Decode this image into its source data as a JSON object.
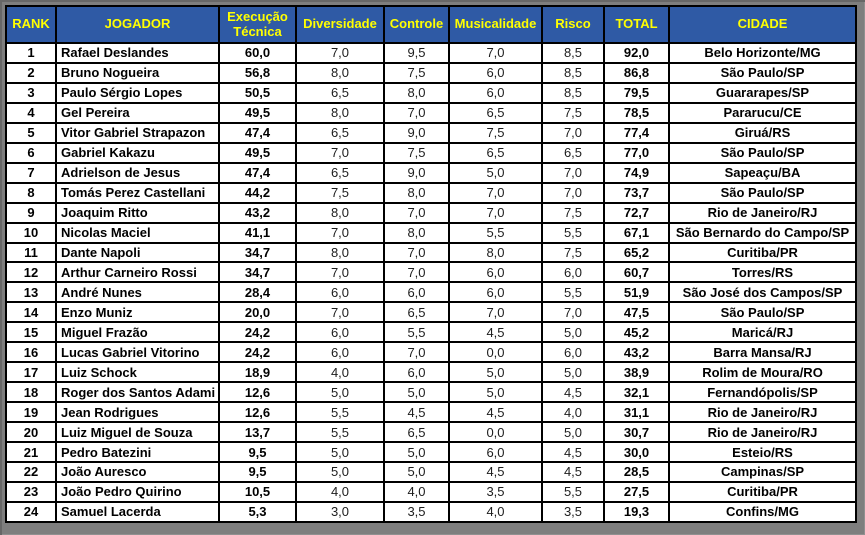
{
  "colors": {
    "header_bg": "#2F5AA5",
    "header_text": "#FFFF00",
    "cell_bg": "#FFFFFF",
    "grid_border": "#000000",
    "frame_bg": "#7E7E7E",
    "strong_text": "#000000",
    "metric_text": "#1C1C1C"
  },
  "table": {
    "columns": [
      {
        "key": "rank",
        "label": "RANK"
      },
      {
        "key": "jogador",
        "label": "JOGADOR"
      },
      {
        "key": "execucao",
        "label": "Execução Técnica"
      },
      {
        "key": "diversidade",
        "label": "Diversidade"
      },
      {
        "key": "controle",
        "label": "Controle"
      },
      {
        "key": "musicalidade",
        "label": "Musicalidade"
      },
      {
        "key": "risco",
        "label": "Risco"
      },
      {
        "key": "total",
        "label": "TOTAL"
      },
      {
        "key": "cidade",
        "label": "CIDADE"
      }
    ],
    "rows": [
      {
        "rank": "1",
        "jogador": "Rafael Deslandes",
        "execucao": "60,0",
        "diversidade": "7,0",
        "controle": "9,5",
        "musicalidade": "7,0",
        "risco": "8,5",
        "total": "92,0",
        "cidade": "Belo Horizonte/MG"
      },
      {
        "rank": "2",
        "jogador": "Bruno Nogueira",
        "execucao": "56,8",
        "diversidade": "8,0",
        "controle": "7,5",
        "musicalidade": "6,0",
        "risco": "8,5",
        "total": "86,8",
        "cidade": "São Paulo/SP"
      },
      {
        "rank": "3",
        "jogador": "Paulo Sérgio Lopes",
        "execucao": "50,5",
        "diversidade": "6,5",
        "controle": "8,0",
        "musicalidade": "6,0",
        "risco": "8,5",
        "total": "79,5",
        "cidade": "Guararapes/SP"
      },
      {
        "rank": "4",
        "jogador": "Gel Pereira",
        "execucao": "49,5",
        "diversidade": "8,0",
        "controle": "7,0",
        "musicalidade": "6,5",
        "risco": "7,5",
        "total": "78,5",
        "cidade": "Pararucu/CE"
      },
      {
        "rank": "5",
        "jogador": "Vitor Gabriel Strapazon",
        "execucao": "47,4",
        "diversidade": "6,5",
        "controle": "9,0",
        "musicalidade": "7,5",
        "risco": "7,0",
        "total": "77,4",
        "cidade": "Giruá/RS"
      },
      {
        "rank": "6",
        "jogador": "Gabriel Kakazu",
        "execucao": "49,5",
        "diversidade": "7,0",
        "controle": "7,5",
        "musicalidade": "6,5",
        "risco": "6,5",
        "total": "77,0",
        "cidade": "São Paulo/SP"
      },
      {
        "rank": "7",
        "jogador": "Adrielson de Jesus",
        "execucao": "47,4",
        "diversidade": "6,5",
        "controle": "9,0",
        "musicalidade": "5,0",
        "risco": "7,0",
        "total": "74,9",
        "cidade": "Sapeaçu/BA"
      },
      {
        "rank": "8",
        "jogador": "Tomás Perez Castellani",
        "execucao": "44,2",
        "diversidade": "7,5",
        "controle": "8,0",
        "musicalidade": "7,0",
        "risco": "7,0",
        "total": "73,7",
        "cidade": "São Paulo/SP"
      },
      {
        "rank": "9",
        "jogador": "Joaquim Ritto",
        "execucao": "43,2",
        "diversidade": "8,0",
        "controle": "7,0",
        "musicalidade": "7,0",
        "risco": "7,5",
        "total": "72,7",
        "cidade": "Rio de Janeiro/RJ"
      },
      {
        "rank": "10",
        "jogador": "Nicolas Maciel",
        "execucao": "41,1",
        "diversidade": "7,0",
        "controle": "8,0",
        "musicalidade": "5,5",
        "risco": "5,5",
        "total": "67,1",
        "cidade": "São Bernardo do Campo/SP"
      },
      {
        "rank": "11",
        "jogador": "Dante Napoli",
        "execucao": "34,7",
        "diversidade": "8,0",
        "controle": "7,0",
        "musicalidade": "8,0",
        "risco": "7,5",
        "total": "65,2",
        "cidade": "Curitiba/PR"
      },
      {
        "rank": "12",
        "jogador": "Arthur Carneiro Rossi",
        "execucao": "34,7",
        "diversidade": "7,0",
        "controle": "7,0",
        "musicalidade": "6,0",
        "risco": "6,0",
        "total": "60,7",
        "cidade": "Torres/RS"
      },
      {
        "rank": "13",
        "jogador": "André Nunes",
        "execucao": "28,4",
        "diversidade": "6,0",
        "controle": "6,0",
        "musicalidade": "6,0",
        "risco": "5,5",
        "total": "51,9",
        "cidade": "São José dos Campos/SP"
      },
      {
        "rank": "14",
        "jogador": "Enzo Muniz",
        "execucao": "20,0",
        "diversidade": "7,0",
        "controle": "6,5",
        "musicalidade": "7,0",
        "risco": "7,0",
        "total": "47,5",
        "cidade": "São Paulo/SP"
      },
      {
        "rank": "15",
        "jogador": "Miguel Frazão",
        "execucao": "24,2",
        "diversidade": "6,0",
        "controle": "5,5",
        "musicalidade": "4,5",
        "risco": "5,0",
        "total": "45,2",
        "cidade": "Maricá/RJ"
      },
      {
        "rank": "16",
        "jogador": "Lucas Gabriel Vitorino",
        "execucao": "24,2",
        "diversidade": "6,0",
        "controle": "7,0",
        "musicalidade": "0,0",
        "risco": "6,0",
        "total": "43,2",
        "cidade": "Barra Mansa/RJ"
      },
      {
        "rank": "17",
        "jogador": "Luiz Schock",
        "execucao": "18,9",
        "diversidade": "4,0",
        "controle": "6,0",
        "musicalidade": "5,0",
        "risco": "5,0",
        "total": "38,9",
        "cidade": "Rolim de Moura/RO"
      },
      {
        "rank": "18",
        "jogador": "Roger dos Santos Adami",
        "execucao": "12,6",
        "diversidade": "5,0",
        "controle": "5,0",
        "musicalidade": "5,0",
        "risco": "4,5",
        "total": "32,1",
        "cidade": "Fernandópolis/SP"
      },
      {
        "rank": "19",
        "jogador": "Jean Rodrigues",
        "execucao": "12,6",
        "diversidade": "5,5",
        "controle": "4,5",
        "musicalidade": "4,5",
        "risco": "4,0",
        "total": "31,1",
        "cidade": "Rio de Janeiro/RJ"
      },
      {
        "rank": "20",
        "jogador": "Luiz Miguel de Souza",
        "execucao": "13,7",
        "diversidade": "5,5",
        "controle": "6,5",
        "musicalidade": "0,0",
        "risco": "5,0",
        "total": "30,7",
        "cidade": "Rio de Janeiro/RJ"
      },
      {
        "rank": "21",
        "jogador": "Pedro Batezini",
        "execucao": "9,5",
        "diversidade": "5,0",
        "controle": "5,0",
        "musicalidade": "6,0",
        "risco": "4,5",
        "total": "30,0",
        "cidade": "Esteio/RS"
      },
      {
        "rank": "22",
        "jogador": "João Auresco",
        "execucao": "9,5",
        "diversidade": "5,0",
        "controle": "5,0",
        "musicalidade": "4,5",
        "risco": "4,5",
        "total": "28,5",
        "cidade": "Campinas/SP"
      },
      {
        "rank": "23",
        "jogador": "João Pedro Quirino",
        "execucao": "10,5",
        "diversidade": "4,0",
        "controle": "4,0",
        "musicalidade": "3,5",
        "risco": "5,5",
        "total": "27,5",
        "cidade": "Curitiba/PR"
      },
      {
        "rank": "24",
        "jogador": "Samuel Lacerda",
        "execucao": "5,3",
        "diversidade": "3,0",
        "controle": "3,5",
        "musicalidade": "4,0",
        "risco": "3,5",
        "total": "19,3",
        "cidade": "Confins/MG"
      }
    ]
  }
}
